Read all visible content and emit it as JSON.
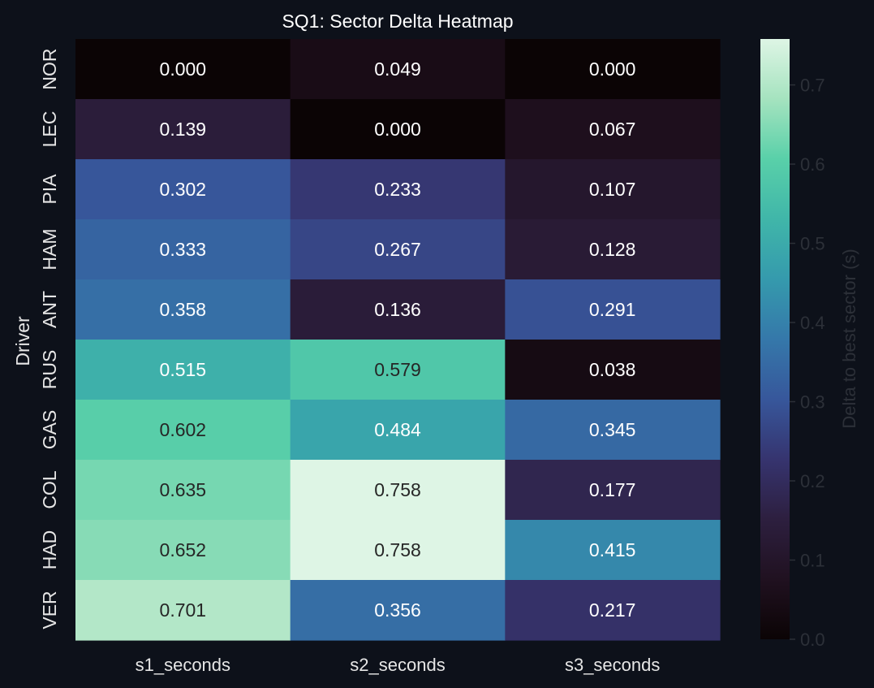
{
  "chart_data": {
    "type": "heatmap",
    "title": "SQ1: Sector Delta Heatmap",
    "xlabel": "",
    "ylabel": "Driver",
    "columns": [
      "s1_seconds",
      "s2_seconds",
      "s3_seconds"
    ],
    "rows": [
      "NOR",
      "LEC",
      "PIA",
      "HAM",
      "ANT",
      "RUS",
      "GAS",
      "COL",
      "HAD",
      "VER"
    ],
    "values": [
      [
        0.0,
        0.049,
        0.0
      ],
      [
        0.139,
        0.0,
        0.067
      ],
      [
        0.302,
        0.233,
        0.107
      ],
      [
        0.333,
        0.267,
        0.128
      ],
      [
        0.358,
        0.136,
        0.291
      ],
      [
        0.515,
        0.579,
        0.038
      ],
      [
        0.602,
        0.484,
        0.345
      ],
      [
        0.635,
        0.758,
        0.177
      ],
      [
        0.652,
        0.758,
        0.415
      ],
      [
        0.701,
        0.356,
        0.217
      ]
    ],
    "cell_labels": [
      [
        "0.000",
        "0.049",
        "0.000"
      ],
      [
        "0.139",
        "0.000",
        "0.067"
      ],
      [
        "0.302",
        "0.233",
        "0.107"
      ],
      [
        "0.333",
        "0.267",
        "0.128"
      ],
      [
        "0.358",
        "0.136",
        "0.291"
      ],
      [
        "0.515",
        "0.579",
        "0.038"
      ],
      [
        "0.602",
        "0.484",
        "0.345"
      ],
      [
        "0.635",
        "0.758",
        "0.177"
      ],
      [
        "0.652",
        "0.758",
        "0.415"
      ],
      [
        "0.701",
        "0.356",
        "0.217"
      ]
    ],
    "colorbar": {
      "label": "Delta to best sector (s)",
      "range": [
        0.0,
        0.758
      ],
      "ticks": [
        0.0,
        0.1,
        0.2,
        0.3,
        0.4,
        0.5,
        0.6,
        0.7
      ],
      "tick_labels": [
        "0.0",
        "0.1",
        "0.2",
        "0.3",
        "0.4",
        "0.5",
        "0.6",
        "0.7"
      ],
      "colormap": "mako"
    },
    "grid": false,
    "colors": {
      "background": "#0d111a",
      "title_text": "#ffffff",
      "axis_text": "#e6e6e6",
      "colorbar_text": "#2c3038",
      "light_cell_text": "#ffffff",
      "dark_cell_text": "#262626"
    }
  }
}
